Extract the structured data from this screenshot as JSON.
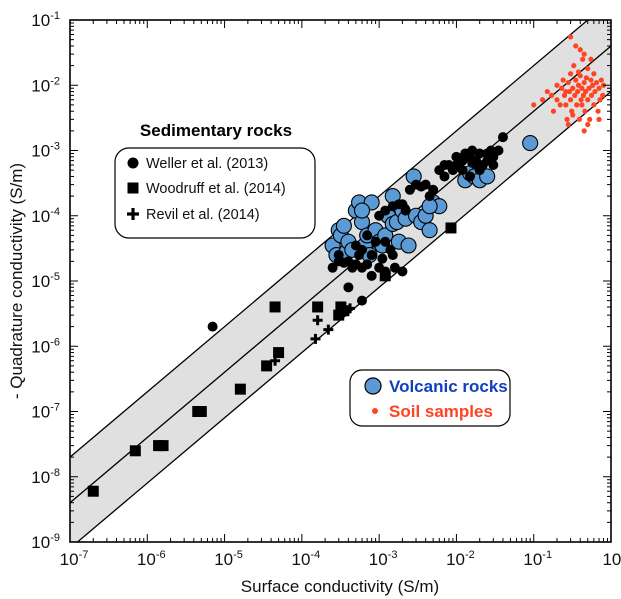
{
  "chart_data": {
    "type": "scatter",
    "x_scale": "log",
    "y_scale": "log",
    "xlabel": "Surface conductivity (S/m)",
    "ylabel": "- Quadrature conductivity (S/m)",
    "xlim": [
      1e-07,
      1
    ],
    "ylim": [
      1e-09,
      0.1
    ],
    "x_tick_labels": [
      {
        "base": "10",
        "exp": "-7"
      },
      {
        "base": "10",
        "exp": "-6"
      },
      {
        "base": "10",
        "exp": "-5"
      },
      {
        "base": "10",
        "exp": "-4"
      },
      {
        "base": "10",
        "exp": "-3"
      },
      {
        "base": "10",
        "exp": "-2"
      },
      {
        "base": "10",
        "exp": "-1"
      },
      {
        "base": "10",
        "exp": "0"
      }
    ],
    "y_tick_labels": [
      {
        "base": "10",
        "exp": "-9"
      },
      {
        "base": "10",
        "exp": "-8"
      },
      {
        "base": "10",
        "exp": "-7"
      },
      {
        "base": "10",
        "exp": "-6"
      },
      {
        "base": "10",
        "exp": "-5"
      },
      {
        "base": "10",
        "exp": "-4"
      },
      {
        "base": "10",
        "exp": "-3"
      },
      {
        "base": "10",
        "exp": "-2"
      },
      {
        "base": "10",
        "exp": "-1"
      }
    ],
    "band": {
      "color": "#e0e0e0",
      "lines": [
        {
          "x": [
            1e-07,
            1
          ],
          "y": [
            2e-08,
            0.2
          ]
        },
        {
          "x": [
            1e-07,
            1
          ],
          "y": [
            4e-09,
            0.04
          ]
        },
        {
          "x": [
            1e-07,
            1
          ],
          "y": [
            8e-10,
            0.008
          ]
        }
      ]
    },
    "legend_title": "Sedimentary rocks",
    "series": [
      {
        "name": "Weller et al. (2013)",
        "marker": "circle",
        "color": "#000000",
        "points": [
          [
            7e-06,
            2e-06
          ],
          [
            0.00025,
            1.6e-05
          ],
          [
            0.0003,
            2.5e-05
          ],
          [
            0.00035,
            1.9e-05
          ],
          [
            0.0004,
            2e-05
          ],
          [
            0.00045,
            1.6e-05
          ],
          [
            0.0005,
            1.8e-05
          ],
          [
            0.00055,
            2.5e-05
          ],
          [
            0.0006,
            3e-05
          ],
          [
            0.0007,
            1.8e-05
          ],
          [
            0.0008,
            2.5e-05
          ],
          [
            0.0009,
            4e-05
          ],
          [
            0.001,
            1.6e-05
          ],
          [
            0.0011,
            2.2e-05
          ],
          [
            0.0012,
            4e-05
          ],
          [
            0.0014,
            3e-05
          ],
          [
            0.0016,
            1.6e-05
          ],
          [
            0.002,
            1.4e-05
          ],
          [
            0.0012,
            1.4e-05
          ],
          [
            0.0005,
            3.5e-05
          ],
          [
            0.0004,
            8e-06
          ],
          [
            0.0006,
            5e-06
          ],
          [
            0.0007,
            5e-05
          ],
          [
            0.0015,
            2.5e-05
          ],
          [
            0.0008,
            1.2e-05
          ],
          [
            0.0003,
            2e-05
          ],
          [
            0.0006,
            1.6e-05
          ],
          [
            0.001,
            0.0001
          ],
          [
            0.0012,
            0.00012
          ],
          [
            0.0015,
            0.00014
          ],
          [
            0.002,
            0.00015
          ],
          [
            0.0025,
            0.00025
          ],
          [
            0.003,
            0.0003
          ],
          [
            0.0035,
            0.00028
          ],
          [
            0.004,
            0.0003
          ],
          [
            0.005,
            0.00025
          ],
          [
            0.006,
            0.0005
          ],
          [
            0.007,
            0.0004
          ],
          [
            0.008,
            0.0006
          ],
          [
            0.009,
            0.0005
          ],
          [
            0.01,
            0.0008
          ],
          [
            0.012,
            0.0007
          ],
          [
            0.013,
            0.0009
          ],
          [
            0.015,
            0.0008
          ],
          [
            0.016,
            0.001
          ],
          [
            0.018,
            0.0007
          ],
          [
            0.02,
            0.0009
          ],
          [
            0.022,
            0.0006
          ],
          [
            0.025,
            0.0007
          ],
          [
            0.03,
            0.0008
          ],
          [
            0.035,
            0.001
          ],
          [
            0.04,
            0.0016
          ],
          [
            0.02,
            0.0005
          ],
          [
            0.015,
            0.0004
          ],
          [
            0.018,
            0.0006
          ],
          [
            0.012,
            0.0005
          ],
          [
            0.025,
            0.0009
          ],
          [
            0.03,
            0.0006
          ],
          [
            0.01,
            0.0006
          ],
          [
            0.0045,
            0.0002
          ],
          [
            0.0018,
            0.00015
          ],
          [
            0.007,
            0.0006
          ],
          [
            0.0022,
            0.00012
          ],
          [
            0.016,
            0.00065
          ],
          [
            0.028,
            0.001
          ]
        ]
      },
      {
        "name": "Woodruff et al. (2014)",
        "marker": "square",
        "color": "#000000",
        "points": [
          [
            2e-07,
            6e-09
          ],
          [
            7e-07,
            2.5e-08
          ],
          [
            1.4e-06,
            3e-08
          ],
          [
            1.6e-06,
            3e-08
          ],
          [
            4.5e-06,
            1e-07
          ],
          [
            5e-06,
            1e-07
          ],
          [
            1.6e-05,
            2.2e-07
          ],
          [
            3.5e-05,
            5e-07
          ],
          [
            5e-05,
            8e-07
          ],
          [
            4.5e-05,
            4e-06
          ],
          [
            0.00016,
            4e-06
          ],
          [
            0.0003,
            3e-06
          ],
          [
            0.00032,
            4e-06
          ],
          [
            0.00035,
            3.5e-06
          ],
          [
            0.0012,
            1.2e-05
          ],
          [
            0.0085,
            6.5e-05
          ]
        ]
      },
      {
        "name": "Revil et al. (2014)",
        "marker": "plus",
        "color": "#000000",
        "points": [
          [
            4.5e-05,
            6e-07
          ],
          [
            0.00015,
            1.3e-06
          ],
          [
            0.00016,
            2.5e-06
          ],
          [
            0.00022,
            1.8e-06
          ],
          [
            0.00032,
            3e-06
          ],
          [
            0.00042,
            3.8e-06
          ]
        ]
      },
      {
        "name": "Volcanic rocks",
        "marker": "circle",
        "color": "#5b9bd5",
        "points": [
          [
            0.00025,
            3.5e-05
          ],
          [
            0.00028,
            2.5e-05
          ],
          [
            0.0003,
            6e-05
          ],
          [
            0.00032,
            5e-05
          ],
          [
            0.00035,
            7e-05
          ],
          [
            0.00038,
            2.8e-05
          ],
          [
            0.0004,
            4e-05
          ],
          [
            0.00045,
            3e-05
          ],
          [
            0.0005,
            0.00012
          ],
          [
            0.00055,
            0.00016
          ],
          [
            0.0006,
            8e-05
          ],
          [
            0.00065,
            3.5e-05
          ],
          [
            0.0007,
            5e-05
          ],
          [
            0.00075,
            2.5e-05
          ],
          [
            0.0008,
            0.00016
          ],
          [
            0.0009,
            6e-05
          ],
          [
            0.001,
            4e-05
          ],
          [
            0.0011,
            3.5e-05
          ],
          [
            0.0012,
            5e-05
          ],
          [
            0.0013,
            0.0001
          ],
          [
            0.0015,
            7.5e-05
          ],
          [
            0.0017,
            8e-05
          ],
          [
            0.0018,
            4e-05
          ],
          [
            0.002,
            0.00012
          ],
          [
            0.0022,
            9e-05
          ],
          [
            0.0024,
            3.5e-05
          ],
          [
            0.0028,
            0.0004
          ],
          [
            0.003,
            0.0001
          ],
          [
            0.0035,
            8e-05
          ],
          [
            0.004,
            0.0001
          ],
          [
            0.0045,
            6e-05
          ],
          [
            0.005,
            0.00016
          ],
          [
            0.006,
            0.00014
          ],
          [
            0.0045,
            0.00014
          ],
          [
            0.013,
            0.00035
          ],
          [
            0.015,
            0.00045
          ],
          [
            0.017,
            0.0004
          ],
          [
            0.02,
            0.00035
          ],
          [
            0.025,
            0.0004
          ],
          [
            0.09,
            0.0013
          ],
          [
            0.0006,
            0.00012
          ],
          [
            0.0015,
            0.0002
          ]
        ]
      },
      {
        "name": "Soil samples",
        "marker": "dot",
        "color": "#ff4422",
        "points": [
          [
            0.1,
            0.005
          ],
          [
            0.13,
            0.006
          ],
          [
            0.15,
            0.008
          ],
          [
            0.17,
            0.007
          ],
          [
            0.18,
            0.004
          ],
          [
            0.2,
            0.01
          ],
          [
            0.2,
            0.006
          ],
          [
            0.22,
            0.005
          ],
          [
            0.23,
            0.009
          ],
          [
            0.24,
            0.012
          ],
          [
            0.25,
            0.007
          ],
          [
            0.26,
            0.005
          ],
          [
            0.27,
            0.003
          ],
          [
            0.28,
            0.011
          ],
          [
            0.29,
            0.008
          ],
          [
            0.3,
            0.006
          ],
          [
            0.3,
            0.015
          ],
          [
            0.31,
            0.004
          ],
          [
            0.32,
            0.009
          ],
          [
            0.33,
            0.02
          ],
          [
            0.34,
            0.007
          ],
          [
            0.35,
            0.012
          ],
          [
            0.36,
            0.005
          ],
          [
            0.37,
            0.008
          ],
          [
            0.38,
            0.01
          ],
          [
            0.39,
            0.003
          ],
          [
            0.4,
            0.014
          ],
          [
            0.41,
            0.006
          ],
          [
            0.42,
            0.009
          ],
          [
            0.43,
            0.025
          ],
          [
            0.44,
            0.007
          ],
          [
            0.45,
            0.011
          ],
          [
            0.46,
            0.004
          ],
          [
            0.47,
            0.008
          ],
          [
            0.48,
            0.013
          ],
          [
            0.5,
            0.006
          ],
          [
            0.5,
            0.018
          ],
          [
            0.52,
            0.009
          ],
          [
            0.53,
            0.003
          ],
          [
            0.55,
            0.012
          ],
          [
            0.56,
            0.007
          ],
          [
            0.58,
            0.01
          ],
          [
            0.6,
            0.005
          ],
          [
            0.6,
            0.015
          ],
          [
            0.62,
            0.008
          ],
          [
            0.65,
            0.011
          ],
          [
            0.68,
            0.004
          ],
          [
            0.7,
            0.009
          ],
          [
            0.72,
            0.006
          ],
          [
            0.75,
            0.012
          ],
          [
            0.78,
            0.007
          ],
          [
            0.8,
            0.01
          ],
          [
            0.3,
            0.055
          ],
          [
            0.35,
            0.04
          ],
          [
            0.4,
            0.035
          ],
          [
            0.45,
            0.03
          ],
          [
            0.55,
            0.025
          ],
          [
            0.28,
            0.0025
          ],
          [
            0.45,
            0.002
          ],
          [
            0.32,
            0.0035
          ],
          [
            0.5,
            0.0025
          ],
          [
            0.7,
            0.003
          ],
          [
            0.38,
            0.016
          ],
          [
            0.26,
            0.008
          ],
          [
            0.42,
            0.005
          ]
        ]
      }
    ],
    "legend2": [
      {
        "label": "Volcanic rocks",
        "color": "#1040c0"
      },
      {
        "label": "Soil samples",
        "color": "#ff4422"
      }
    ]
  }
}
